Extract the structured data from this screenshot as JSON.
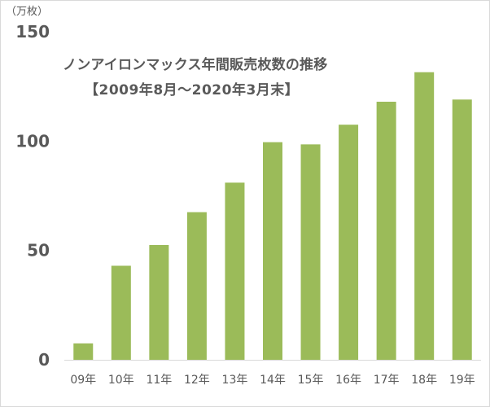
{
  "chart_data": {
    "type": "bar",
    "title_line1": "ノンアイロンマックス年間販売枚数の推移",
    "title_line2": "【2009年8月～2020年3月末】",
    "unit_label": "（万枚）",
    "categories": [
      "09年",
      "10年",
      "11年",
      "12年",
      "13年",
      "14年",
      "15年",
      "16年",
      "17年",
      "18年",
      "19年"
    ],
    "series": [
      {
        "values": [
          7.5,
          43,
          52.5,
          67.5,
          81,
          99.5,
          98.5,
          107.5,
          118,
          131.5,
          119
        ]
      }
    ],
    "ylim": [
      0,
      150
    ],
    "yticks": [
      0,
      50,
      100,
      150
    ],
    "grid": false,
    "legend": "none",
    "bar_color": "#9bbb59",
    "axis_color": "#d9d9d9",
    "text_color": "#595959"
  }
}
